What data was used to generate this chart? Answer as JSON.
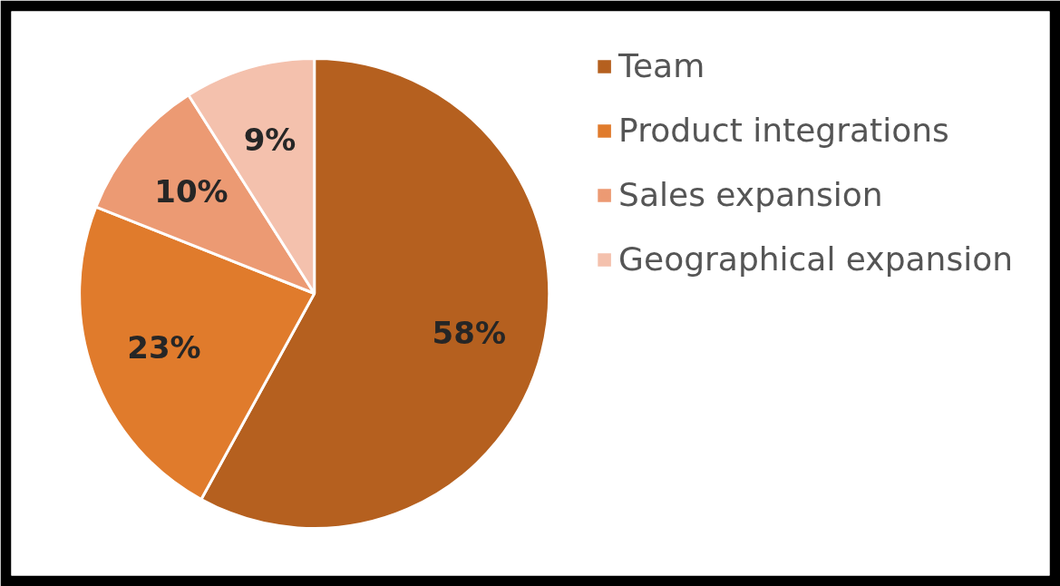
{
  "chart_data": {
    "type": "pie",
    "categories": [
      "Team",
      "Product integrations",
      "Sales expansion",
      "Geographical expansion"
    ],
    "values": [
      58,
      23,
      10,
      9
    ],
    "colors": [
      "#b5601f",
      "#e07b2c",
      "#ec9a73",
      "#f4c1ad"
    ],
    "value_labels": [
      "58%",
      "23%",
      "10%",
      "9%"
    ],
    "legend": "right"
  }
}
